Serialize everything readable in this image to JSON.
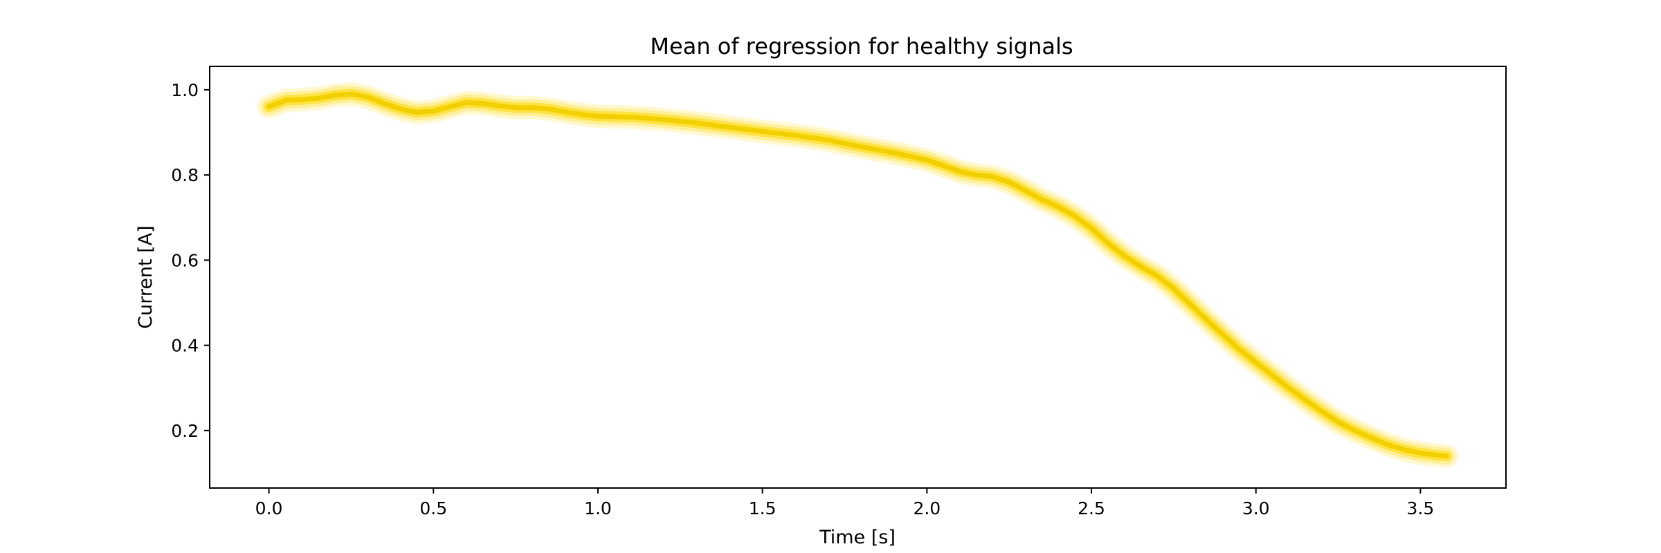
{
  "chart_data": {
    "type": "line",
    "title": "Mean of regression for healthy signals",
    "xlabel": "Time [s]",
    "ylabel": "Current [A]",
    "xlim": [
      -0.18,
      3.76
    ],
    "ylim": [
      0.065,
      1.055
    ],
    "xticks": [
      0.0,
      0.5,
      1.0,
      1.5,
      2.0,
      2.5,
      3.0,
      3.5
    ],
    "yticks": [
      0.2,
      0.4,
      0.6,
      0.8,
      1.0
    ],
    "grid": false,
    "legend": "none",
    "series": [
      {
        "color": "#ffd700",
        "core_color": "#f2d000",
        "x": [
          0.0,
          0.05,
          0.1,
          0.15,
          0.2,
          0.25,
          0.3,
          0.35,
          0.4,
          0.45,
          0.5,
          0.55,
          0.6,
          0.65,
          0.7,
          0.75,
          0.8,
          0.85,
          0.9,
          0.95,
          1.0,
          1.1,
          1.2,
          1.3,
          1.4,
          1.5,
          1.6,
          1.7,
          1.8,
          1.9,
          2.0,
          2.05,
          2.1,
          2.15,
          2.2,
          2.25,
          2.3,
          2.35,
          2.4,
          2.45,
          2.5,
          2.55,
          2.6,
          2.65,
          2.7,
          2.75,
          2.8,
          2.85,
          2.9,
          2.95,
          3.0,
          3.05,
          3.1,
          3.15,
          3.2,
          3.25,
          3.3,
          3.35,
          3.4,
          3.45,
          3.5,
          3.55,
          3.58
        ],
        "y": [
          0.96,
          0.975,
          0.977,
          0.98,
          0.987,
          0.99,
          0.983,
          0.968,
          0.955,
          0.947,
          0.95,
          0.96,
          0.97,
          0.968,
          0.962,
          0.958,
          0.958,
          0.955,
          0.948,
          0.942,
          0.938,
          0.936,
          0.93,
          0.922,
          0.912,
          0.902,
          0.893,
          0.882,
          0.866,
          0.852,
          0.835,
          0.822,
          0.808,
          0.8,
          0.796,
          0.783,
          0.763,
          0.742,
          0.725,
          0.703,
          0.675,
          0.64,
          0.61,
          0.585,
          0.563,
          0.533,
          0.497,
          0.46,
          0.425,
          0.39,
          0.36,
          0.33,
          0.3,
          0.272,
          0.245,
          0.22,
          0.2,
          0.183,
          0.167,
          0.155,
          0.147,
          0.142,
          0.14
        ]
      }
    ]
  }
}
